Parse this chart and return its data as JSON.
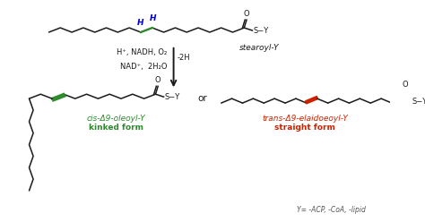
{
  "bg_color": "#ffffff",
  "chain_color": "#1a1a1a",
  "cis_double_bond_color": "#2d8a2d",
  "trans_double_bond_color": "#cc2200",
  "H_label_color": "#0000cc",
  "cis_label_color": "#2d8a2d",
  "trans_label_color": "#cc2200",
  "top_molecule_label": "stearoyl-Y",
  "cis_name": "cis-Δ9-oleoyl-Y",
  "cis_form": "kinked form",
  "trans_name": "trans-Δ9-elaidoeoyl-Y",
  "trans_form": "straight form",
  "or_text": "or",
  "footer": "Y= -ACP, -CoA, -lipid",
  "reagents_left": "H⁺, NADH, O₂",
  "reagents_right": "-2H",
  "products_left": "NAD⁺,  2H₂O"
}
